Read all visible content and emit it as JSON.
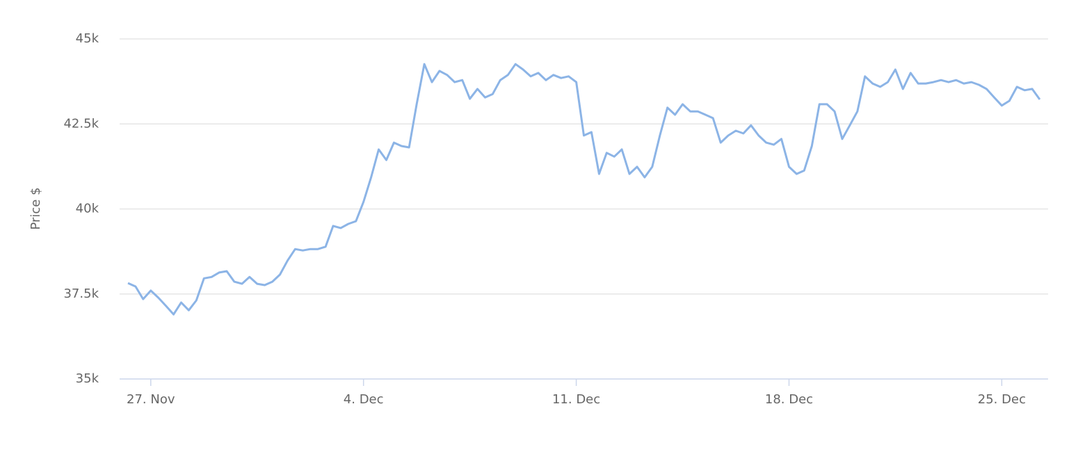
{
  "chart_data": {
    "type": "line",
    "y_label": "Price $",
    "categories": [
      null,
      null,
      null,
      "27. Nov",
      null,
      null,
      null,
      null,
      null,
      null,
      null,
      null,
      null,
      null,
      null,
      null,
      null,
      null,
      null,
      null,
      null,
      null,
      null,
      null,
      null,
      null,
      null,
      null,
      null,
      null,
      null,
      "4. Dec",
      null,
      null,
      null,
      null,
      null,
      null,
      null,
      null,
      null,
      null,
      null,
      null,
      null,
      null,
      null,
      null,
      null,
      null,
      null,
      null,
      null,
      null,
      null,
      null,
      null,
      null,
      null,
      "11. Dec",
      null,
      null,
      null,
      null,
      null,
      null,
      null,
      null,
      null,
      null,
      null,
      null,
      null,
      null,
      null,
      null,
      null,
      null,
      null,
      null,
      null,
      null,
      null,
      null,
      null,
      null,
      null,
      "18. Dec",
      null,
      null,
      null,
      null,
      null,
      null,
      null,
      null,
      null,
      null,
      null,
      null,
      null,
      null,
      null,
      null,
      null,
      null,
      null,
      null,
      null,
      null,
      null,
      null,
      null,
      null,
      null,
      "25. Dec",
      null,
      null,
      null,
      null,
      null
    ],
    "series": [
      {
        "color": "#8cb4e6",
        "values": [
          37820,
          37720,
          37350,
          37600,
          37390,
          37150,
          36900,
          37250,
          37020,
          37310,
          37960,
          38000,
          38130,
          38170,
          37860,
          37800,
          38000,
          37800,
          37760,
          37860,
          38070,
          38480,
          38820,
          38780,
          38820,
          38820,
          38890,
          39500,
          39440,
          39560,
          39640,
          40210,
          40930,
          41750,
          41440,
          41950,
          41850,
          41810,
          43080,
          44260,
          43730,
          44060,
          43940,
          43730,
          43790,
          43240,
          43530,
          43280,
          43380,
          43790,
          43940,
          44260,
          44100,
          43900,
          44000,
          43790,
          43940,
          43850,
          43900,
          43730,
          42160,
          42260,
          41030,
          41650,
          41540,
          41750,
          41030,
          41240,
          40930,
          41240,
          42160,
          42980,
          42770,
          43080,
          42870,
          42870,
          42770,
          42670,
          41950,
          42160,
          42300,
          42220,
          42460,
          42160,
          41950,
          41890,
          42060,
          41240,
          41030,
          41130,
          41850,
          43080,
          43080,
          42870,
          42060,
          42460,
          42870,
          43900,
          43690,
          43590,
          43730,
          44100,
          43530,
          44000,
          43690,
          43690,
          43730,
          43790,
          43730,
          43790,
          43690,
          43730,
          43650,
          43530,
          43280,
          43040,
          43180,
          43590,
          43490,
          43530,
          43220
        ]
      }
    ],
    "ylim": [
      35000,
      45000
    ],
    "yticks": [
      {
        "value": 35000,
        "label": "35k"
      },
      {
        "value": 37500,
        "label": "37.5k"
      },
      {
        "value": 40000,
        "label": "40k"
      },
      {
        "value": 42500,
        "label": "42.5k"
      },
      {
        "value": 45000,
        "label": "45k"
      }
    ],
    "grid": true
  }
}
